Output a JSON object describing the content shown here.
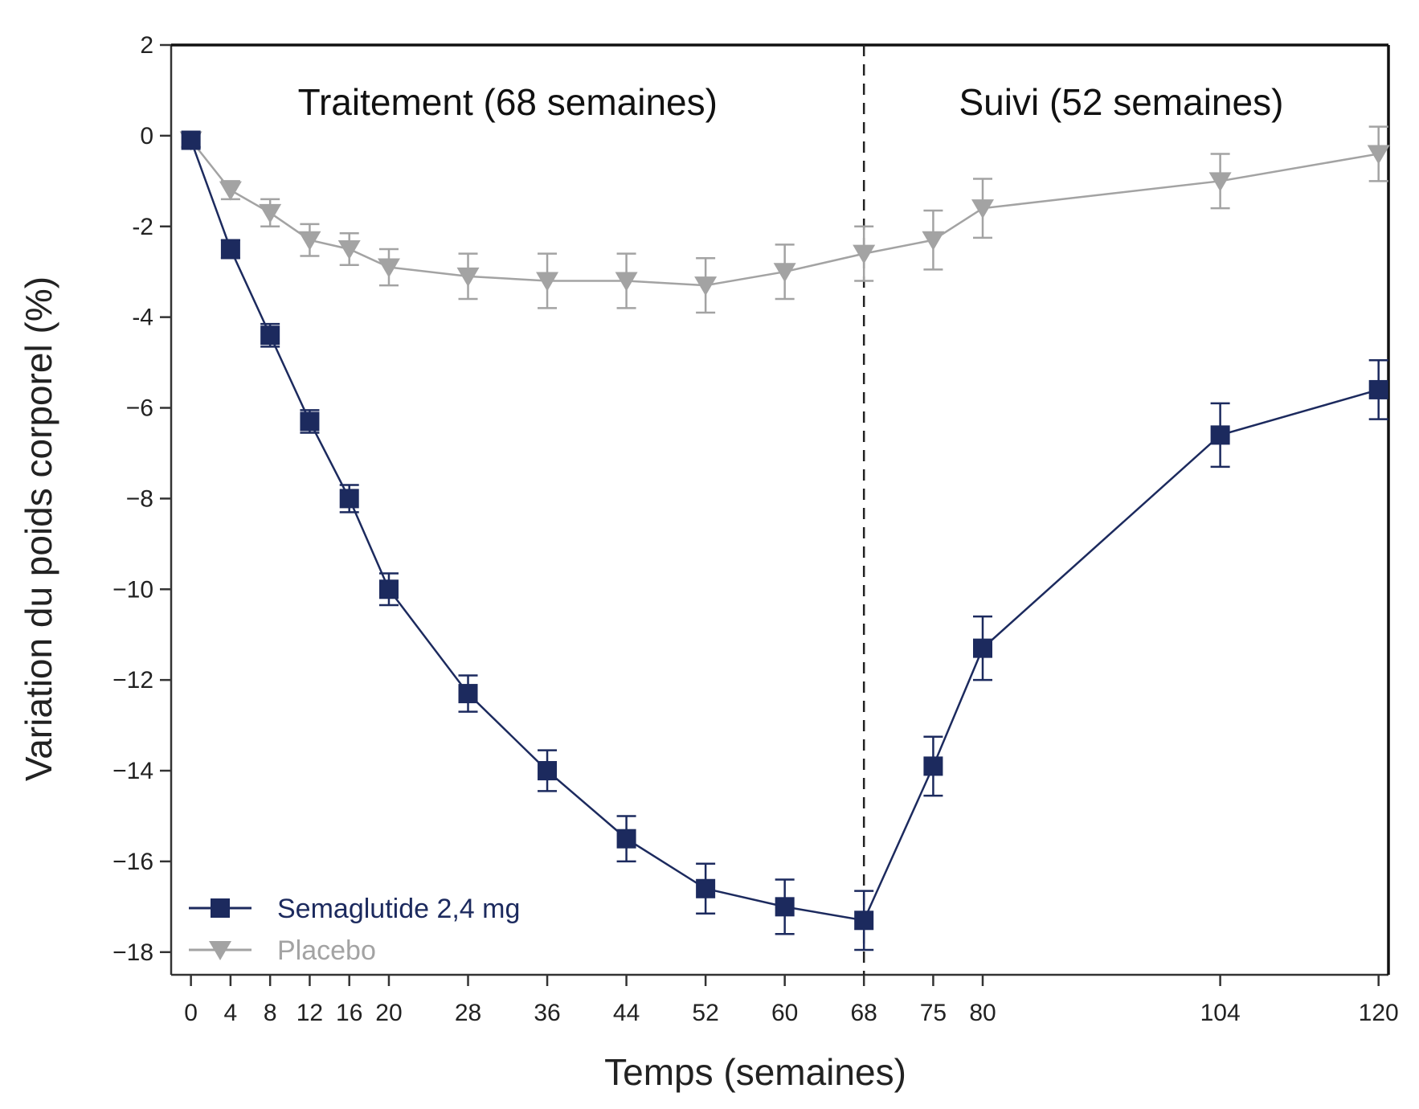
{
  "chart_data": {
    "type": "line",
    "xlabel": "Temps (semaines)",
    "ylabel": "Variation du poids corporel (%)",
    "xlim": [
      -2,
      121
    ],
    "ylim": [
      -18.5,
      2
    ],
    "x_ticks": [
      0,
      4,
      8,
      12,
      16,
      20,
      28,
      36,
      44,
      52,
      60,
      68,
      75,
      80,
      104,
      120
    ],
    "y_ticks": [
      2,
      0,
      -2,
      -4,
      -6,
      -8,
      -10,
      -12,
      -14,
      -16,
      -18
    ],
    "y_tick_labels": [
      "2",
      "0",
      "-2",
      "-4",
      "−6",
      "−8",
      "−10",
      "−12",
      "−14",
      "−16",
      "−18"
    ],
    "phase_divider_x": 68,
    "phases": [
      {
        "label": "Traitement (68 semaines)",
        "x_center": 32
      },
      {
        "label": "Suivi (52 semaines)",
        "x_center": 94
      }
    ],
    "legend_position": "bottom-left",
    "series": [
      {
        "name": "Semaglutide 2,4 mg",
        "color": "#1c2a5e",
        "marker": "square",
        "x": [
          0,
          4,
          8,
          12,
          16,
          20,
          28,
          36,
          44,
          52,
          60,
          68,
          75,
          80,
          104,
          120
        ],
        "y": [
          -0.1,
          -2.5,
          -4.4,
          -6.3,
          -8.0,
          -10.0,
          -12.3,
          -14.0,
          -15.5,
          -16.6,
          -17.0,
          -17.3,
          -13.9,
          -11.3,
          -6.6,
          -5.6
        ],
        "err": [
          0.15,
          0.2,
          0.25,
          0.25,
          0.3,
          0.35,
          0.4,
          0.45,
          0.5,
          0.55,
          0.6,
          0.65,
          0.65,
          0.7,
          0.7,
          0.65
        ]
      },
      {
        "name": "Placebo",
        "color": "#a3a3a3",
        "marker": "triangle-down",
        "x": [
          0,
          4,
          8,
          12,
          16,
          20,
          28,
          36,
          44,
          52,
          60,
          68,
          75,
          80,
          104,
          120
        ],
        "y": [
          -0.1,
          -1.2,
          -1.7,
          -2.3,
          -2.5,
          -2.9,
          -3.1,
          -3.2,
          -3.2,
          -3.3,
          -3.0,
          -2.6,
          -2.3,
          -1.6,
          -1.0,
          -0.4
        ],
        "err": [
          0.15,
          0.2,
          0.3,
          0.35,
          0.35,
          0.4,
          0.5,
          0.6,
          0.6,
          0.6,
          0.6,
          0.6,
          0.65,
          0.65,
          0.6,
          0.6
        ]
      }
    ]
  }
}
